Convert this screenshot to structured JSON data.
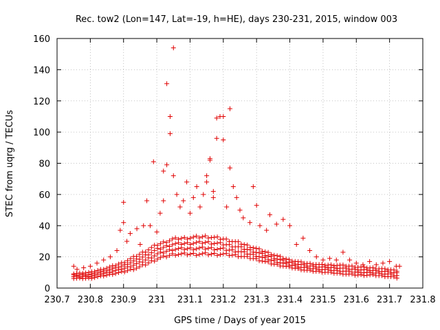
{
  "chart_data": {
    "type": "scatter",
    "title": "Rec. tow2 (Lon=147, Lat=-19, h=HE), days 230-231, 2015, window 003",
    "xlabel": "GPS time / Days of year 2015",
    "ylabel": "STEC from uqrg / TECUs",
    "xlim": [
      230.7,
      231.8
    ],
    "ylim": [
      0,
      160
    ],
    "xticks": [
      230.7,
      230.8,
      230.9,
      231.0,
      231.1,
      231.2,
      231.3,
      231.4,
      231.5,
      231.6,
      231.7,
      231.8
    ],
    "xtick_labels": [
      "230.7",
      "230.8",
      "230.9",
      "231",
      "231.1",
      "231.2",
      "231.3",
      "231.4",
      "231.5",
      "231.6",
      "231.7",
      "231.8"
    ],
    "yticks": [
      0,
      20,
      40,
      60,
      80,
      100,
      120,
      140,
      160
    ],
    "ytick_labels": [
      "0",
      "20",
      "40",
      "60",
      "80",
      "100",
      "120",
      "140",
      "160"
    ],
    "grid": true,
    "marker": "plus",
    "series": [
      {
        "name": "STEC",
        "color": "#e00000",
        "points": [
          [
            230.75,
            14
          ],
          [
            230.76,
            12
          ],
          [
            230.78,
            13
          ],
          [
            230.8,
            14
          ],
          [
            230.82,
            16
          ],
          [
            230.84,
            18
          ],
          [
            230.86,
            20
          ],
          [
            230.88,
            24
          ],
          [
            230.89,
            37
          ],
          [
            230.9,
            55
          ],
          [
            230.9,
            42
          ],
          [
            230.91,
            30
          ],
          [
            230.92,
            35
          ],
          [
            230.94,
            38
          ],
          [
            230.95,
            28
          ],
          [
            230.96,
            40
          ],
          [
            230.97,
            56
          ],
          [
            230.98,
            40
          ],
          [
            230.99,
            81
          ],
          [
            231.0,
            36
          ],
          [
            231.01,
            48
          ],
          [
            231.02,
            56
          ],
          [
            231.02,
            75
          ],
          [
            231.03,
            79
          ],
          [
            231.03,
            131
          ],
          [
            231.04,
            110
          ],
          [
            231.04,
            99
          ],
          [
            231.05,
            154
          ],
          [
            231.05,
            72
          ],
          [
            231.06,
            60
          ],
          [
            231.07,
            52
          ],
          [
            231.08,
            56
          ],
          [
            231.09,
            68
          ],
          [
            231.1,
            48
          ],
          [
            231.11,
            58
          ],
          [
            231.12,
            65
          ],
          [
            231.13,
            52
          ],
          [
            231.14,
            60
          ],
          [
            231.15,
            72
          ],
          [
            231.15,
            68
          ],
          [
            231.16,
            83
          ],
          [
            231.16,
            82
          ],
          [
            231.17,
            62
          ],
          [
            231.17,
            58
          ],
          [
            231.18,
            109
          ],
          [
            231.18,
            96
          ],
          [
            231.19,
            110
          ],
          [
            231.2,
            110
          ],
          [
            231.2,
            95
          ],
          [
            231.21,
            52
          ],
          [
            231.22,
            115
          ],
          [
            231.22,
            77
          ],
          [
            231.23,
            65
          ],
          [
            231.24,
            58
          ],
          [
            231.25,
            50
          ],
          [
            231.26,
            45
          ],
          [
            231.28,
            42
          ],
          [
            231.29,
            65
          ],
          [
            231.3,
            53
          ],
          [
            231.31,
            40
          ],
          [
            231.33,
            37
          ],
          [
            231.34,
            47
          ],
          [
            231.36,
            41
          ],
          [
            231.38,
            44
          ],
          [
            231.4,
            40
          ],
          [
            231.42,
            28
          ],
          [
            231.44,
            32
          ],
          [
            231.46,
            24
          ],
          [
            231.48,
            20
          ],
          [
            231.5,
            18
          ],
          [
            231.52,
            19
          ],
          [
            231.54,
            18
          ],
          [
            231.56,
            23
          ],
          [
            231.58,
            18
          ],
          [
            231.6,
            16
          ],
          [
            231.62,
            15
          ],
          [
            231.64,
            17
          ],
          [
            231.66,
            15
          ],
          [
            231.68,
            16
          ],
          [
            231.7,
            17
          ],
          [
            231.72,
            14
          ],
          [
            231.73,
            14
          ]
        ],
        "band": {
          "x": [
            230.75,
            230.8,
            230.85,
            230.9,
            230.95,
            231.0,
            231.05,
            231.1,
            231.15,
            231.2,
            231.25,
            231.3,
            231.35,
            231.4,
            231.45,
            231.5,
            231.55,
            231.6,
            231.65,
            231.7,
            231.73
          ],
          "low": [
            6,
            6,
            8,
            10,
            13,
            18,
            21,
            21,
            21,
            21,
            20,
            18,
            15,
            13,
            11,
            10,
            9,
            8,
            8,
            7,
            6
          ],
          "high": [
            10,
            11,
            14,
            18,
            24,
            30,
            34,
            35,
            36,
            34,
            31,
            27,
            23,
            19,
            17,
            16,
            16,
            15,
            14,
            13,
            12
          ]
        }
      }
    ]
  }
}
